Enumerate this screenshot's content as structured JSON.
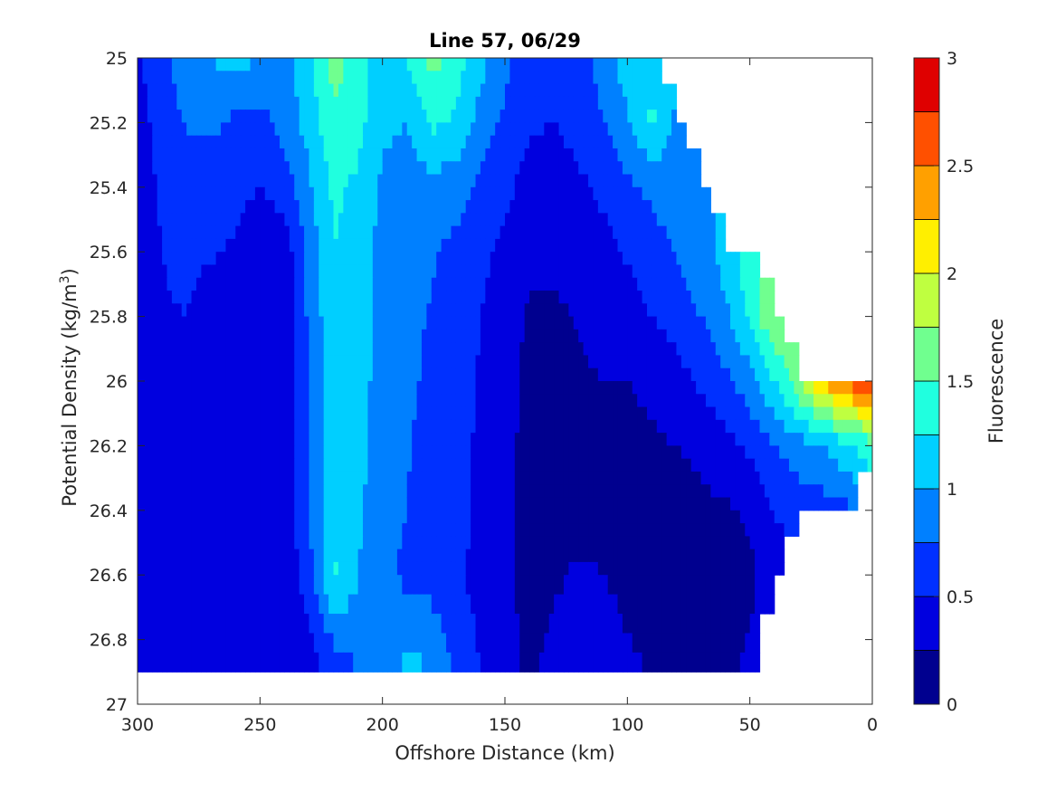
{
  "chart_data": {
    "type": "heatmap",
    "subtype": "filled-contour",
    "title": "Line 57, 06/29",
    "xlabel": "Offshore Distance (km)",
    "ylabel_prefix": "Potential Density (kg/m",
    "ylabel_sup": "3",
    "ylabel_suffix": ")",
    "xlim": [
      300,
      0
    ],
    "x_reversed": true,
    "ylim": [
      25,
      27
    ],
    "y_reversed": true,
    "xticks": [
      "300",
      "250",
      "200",
      "150",
      "100",
      "50",
      "0"
    ],
    "yticks": [
      "25",
      "25.2",
      "25.4",
      "25.6",
      "25.8",
      "26",
      "26.2",
      "26.4",
      "26.6",
      "26.8",
      "27"
    ],
    "colorbar": {
      "label": "Fluorescence",
      "range": [
        0,
        3
      ],
      "levels": [
        0,
        0.25,
        0.5,
        0.75,
        1,
        1.25,
        1.5,
        1.75,
        2,
        2.25,
        2.5,
        2.75,
        3
      ],
      "ticks": [
        "0",
        "0.5",
        "1",
        "1.5",
        "2",
        "2.5",
        "3"
      ],
      "colors": [
        "#00008f",
        "#0000df",
        "#0030ff",
        "#0080ff",
        "#00cfff",
        "#20ffdf",
        "#70ff8f",
        "#bfff40",
        "#ffef00",
        "#ffa000",
        "#ff5000",
        "#df0000"
      ]
    },
    "distance_km": [
      300,
      290,
      280,
      270,
      260,
      250,
      240,
      230,
      220,
      210,
      200,
      190,
      180,
      170,
      160,
      150,
      140,
      130,
      120,
      110,
      100,
      90,
      80,
      70,
      60,
      50,
      40,
      30,
      20,
      10,
      0
    ],
    "density": [
      25.0,
      25.2,
      25.4,
      25.6,
      25.8,
      26.0,
      26.2,
      26.4,
      26.6,
      26.9
    ],
    "fluorescence": [
      [
        0.45,
        0.7,
        0.88,
        1.0,
        1.1,
        1.0,
        0.9,
        1.2,
        1.6,
        1.4,
        1.1,
        1.25,
        1.6,
        1.4,
        1.1,
        0.8,
        0.6,
        0.55,
        0.65,
        0.85,
        1.15,
        1.2,
        null,
        null,
        null,
        null,
        null,
        null,
        null,
        null,
        null
      ],
      [
        0.4,
        0.6,
        0.78,
        0.8,
        0.7,
        0.65,
        0.85,
        1.1,
        1.45,
        1.35,
        1.05,
        1.0,
        1.3,
        1.2,
        0.9,
        0.7,
        0.52,
        0.5,
        0.58,
        0.75,
        0.95,
        1.3,
        0.9,
        null,
        null,
        null,
        null,
        null,
        null,
        null,
        null
      ],
      [
        0.35,
        0.55,
        0.6,
        0.58,
        0.55,
        0.5,
        0.6,
        0.95,
        1.3,
        1.2,
        0.95,
        0.85,
        0.92,
        0.85,
        0.7,
        0.55,
        0.42,
        0.4,
        0.45,
        0.55,
        0.7,
        0.82,
        0.9,
        0.95,
        null,
        null,
        null,
        null,
        null,
        null,
        null
      ],
      [
        0.32,
        0.5,
        0.55,
        0.52,
        0.48,
        0.4,
        0.35,
        0.85,
        1.25,
        1.15,
        0.9,
        0.8,
        0.78,
        0.68,
        0.55,
        0.45,
        0.32,
        0.3,
        0.35,
        0.42,
        0.52,
        0.62,
        0.75,
        0.9,
        1.1,
        1.4,
        null,
        null,
        null,
        null,
        null
      ],
      [
        0.3,
        0.48,
        0.5,
        0.4,
        0.45,
        0.38,
        0.3,
        0.8,
        1.2,
        1.1,
        0.9,
        0.78,
        0.74,
        0.6,
        0.5,
        0.38,
        0.22,
        0.2,
        0.28,
        0.35,
        0.42,
        0.5,
        0.6,
        0.75,
        0.95,
        1.3,
        1.8,
        null,
        null,
        null,
        null
      ],
      [
        0.3,
        0.46,
        0.45,
        0.36,
        0.4,
        0.35,
        0.28,
        0.8,
        1.15,
        1.1,
        0.9,
        0.78,
        0.72,
        0.58,
        0.48,
        0.35,
        0.18,
        0.15,
        0.2,
        0.25,
        0.24,
        0.3,
        0.4,
        0.55,
        0.7,
        0.9,
        1.25,
        1.7,
        2.3,
        2.6,
        2.9
      ],
      [
        0.3,
        0.46,
        0.45,
        0.36,
        0.38,
        0.33,
        0.28,
        0.8,
        1.15,
        1.08,
        0.88,
        0.76,
        0.7,
        0.58,
        0.46,
        0.33,
        0.16,
        0.12,
        0.14,
        0.18,
        0.2,
        0.22,
        0.25,
        0.3,
        0.4,
        0.55,
        0.75,
        0.9,
        1.0,
        1.2,
        1.4
      ],
      [
        0.3,
        0.46,
        0.45,
        0.38,
        0.4,
        0.35,
        0.3,
        0.8,
        1.15,
        1.05,
        0.85,
        0.75,
        0.7,
        0.58,
        0.45,
        0.32,
        0.15,
        0.12,
        0.12,
        0.15,
        0.16,
        0.17,
        0.18,
        0.2,
        0.22,
        0.28,
        0.5,
        0.6,
        0.65,
        0.7,
        null
      ],
      [
        0.3,
        0.46,
        0.46,
        0.4,
        0.42,
        0.4,
        0.32,
        0.6,
        1.3,
        1.0,
        0.8,
        0.7,
        0.65,
        0.55,
        0.42,
        0.3,
        0.15,
        0.2,
        0.3,
        0.25,
        0.18,
        0.15,
        0.15,
        0.15,
        0.15,
        0.2,
        0.4,
        null,
        null,
        null,
        null
      ],
      [
        0.3,
        0.5,
        0.48,
        0.45,
        0.45,
        0.45,
        0.35,
        0.4,
        0.55,
        0.75,
        0.8,
        1.1,
        1.0,
        0.7,
        0.5,
        0.35,
        0.2,
        0.35,
        0.45,
        0.4,
        0.3,
        0.22,
        0.2,
        0.2,
        0.2,
        0.3,
        null,
        null,
        null,
        null,
        null
      ]
    ]
  }
}
